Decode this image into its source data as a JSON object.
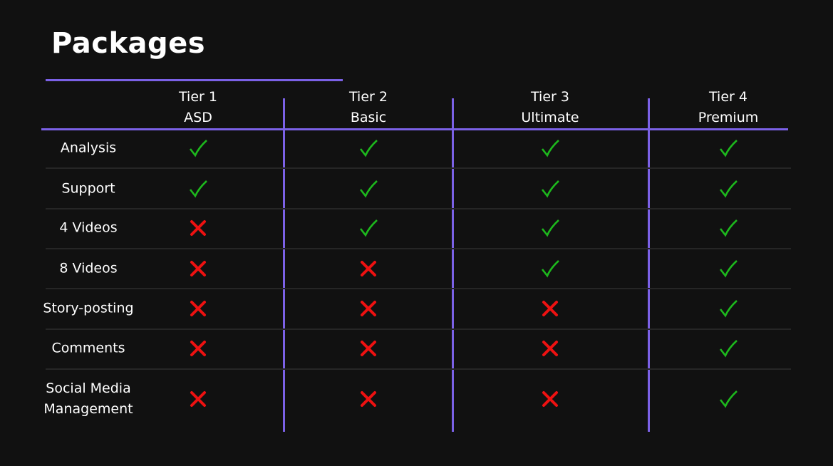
{
  "title": "Packages",
  "colors": {
    "accent": "#7b61e6",
    "check": "#1db81d",
    "cross": "#ee1111",
    "background": "#111111"
  },
  "tiers": [
    {
      "name": "Tier 1",
      "label": "ASD"
    },
    {
      "name": "Tier 2",
      "label": "Basic"
    },
    {
      "name": "Tier 3",
      "label": "Ultimate"
    },
    {
      "name": "Tier 4",
      "label": "Premium"
    }
  ],
  "features": [
    {
      "name": "Analysis",
      "included": [
        true,
        true,
        true,
        true
      ]
    },
    {
      "name": "Support",
      "included": [
        true,
        true,
        true,
        true
      ]
    },
    {
      "name": "4 Videos",
      "included": [
        false,
        true,
        true,
        true
      ]
    },
    {
      "name": "8 Videos",
      "included": [
        false,
        false,
        true,
        true
      ]
    },
    {
      "name": "Story-posting",
      "included": [
        false,
        false,
        false,
        true
      ]
    },
    {
      "name": "Comments",
      "included": [
        false,
        false,
        false,
        true
      ]
    },
    {
      "name": "Social Media Management",
      "included": [
        false,
        false,
        false,
        true
      ]
    }
  ]
}
